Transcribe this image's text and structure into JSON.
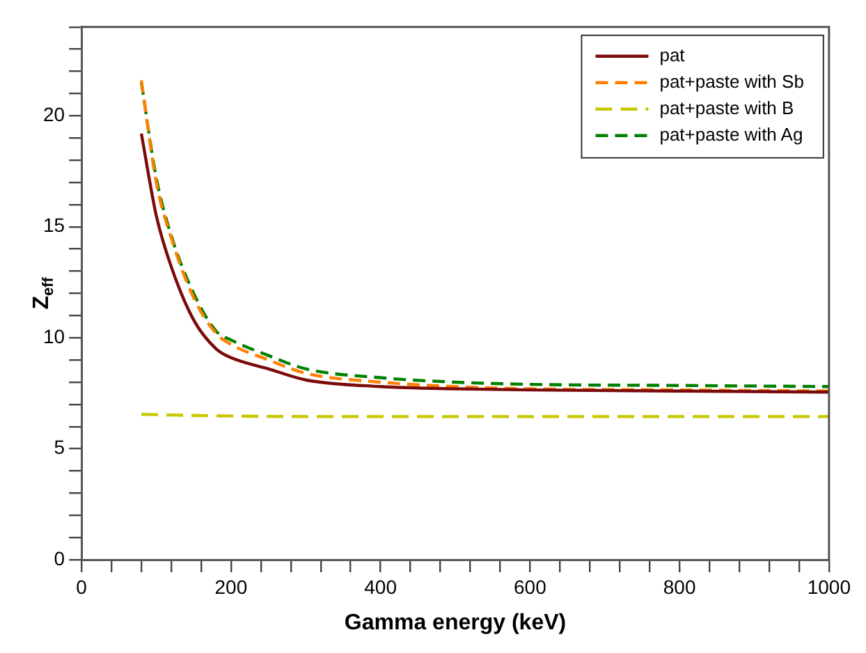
{
  "chart_data": {
    "type": "line",
    "xlabel": "Gamma energy (keV)",
    "ylabel": "Z$_{eff}$",
    "xlim": [
      0,
      1000
    ],
    "ylim": [
      0,
      24
    ],
    "xticks": [
      0,
      {
        "value": 40,
        "label": null
      },
      {
        "value": 80,
        "label": null
      },
      {
        "value": 120,
        "label": null
      },
      {
        "value": 160,
        "label": null
      },
      200,
      {
        "value": 240,
        "label": null
      },
      {
        "value": 280,
        "label": null
      },
      {
        "value": 320,
        "label": null
      },
      {
        "value": 360,
        "label": null
      },
      400,
      {
        "value": 440,
        "label": null
      },
      {
        "value": 480,
        "label": null
      },
      {
        "value": 520,
        "label": null
      },
      {
        "value": 560,
        "label": null
      },
      600,
      {
        "value": 640,
        "label": null
      },
      {
        "value": 680,
        "label": null
      },
      {
        "value": 720,
        "label": null
      },
      {
        "value": 760,
        "label": null
      },
      800,
      {
        "value": 840,
        "label": null
      },
      {
        "value": 880,
        "label": null
      },
      {
        "value": 920,
        "label": null
      },
      {
        "value": 960,
        "label": null
      },
      1000
    ],
    "yticks": [
      0,
      {
        "value": 1,
        "label": null
      },
      {
        "value": 2,
        "label": null
      },
      {
        "value": 3,
        "label": null
      },
      {
        "value": 4,
        "label": null
      },
      5,
      {
        "value": 6,
        "label": null
      },
      {
        "value": 7,
        "label": null
      },
      {
        "value": 8,
        "label": null
      },
      {
        "value": 9,
        "label": null
      },
      10,
      {
        "value": 11,
        "label": null
      },
      {
        "value": 12,
        "label": null
      },
      {
        "value": 13,
        "label": null
      },
      {
        "value": 14,
        "label": null
      },
      15,
      {
        "value": 16,
        "label": null
      },
      {
        "value": 17,
        "label": null
      },
      {
        "value": 18,
        "label": null
      },
      {
        "value": 19,
        "label": null
      },
      20,
      {
        "value": 21,
        "label": null
      },
      {
        "value": 22,
        "label": null
      },
      {
        "value": 23,
        "label": null
      },
      {
        "value": 24,
        "label": null
      }
    ],
    "grid": false,
    "legend": "top right",
    "marker": "none",
    "series": [
      {
        "name": "pat",
        "color": "#7b0a0a",
        "line_style": "solid",
        "x": [
          80,
          100,
          120,
          150,
          180,
          200,
          250,
          300,
          400,
          500,
          600,
          800,
          1000
        ],
        "values": [
          19.2,
          15.5,
          13.2,
          10.8,
          9.5,
          9.1,
          8.6,
          8.1,
          7.8,
          7.7,
          7.65,
          7.6,
          7.55
        ]
      },
      {
        "name": "pat+paste with Sb",
        "color": "#ff8000",
        "line_style": "dashed",
        "x": [
          80,
          100,
          120,
          150,
          180,
          200,
          250,
          300,
          400,
          500,
          600,
          800,
          1000
        ],
        "values": [
          21.6,
          17,
          14.5,
          11.8,
          10.2,
          9.7,
          9,
          8.4,
          8,
          7.8,
          7.7,
          7.65,
          7.6
        ]
      },
      {
        "name": "pat+paste with B",
        "color": "#c8c800",
        "line_style": "dashed",
        "x": [
          80,
          150,
          300,
          1000
        ],
        "values": [
          6.55,
          6.5,
          6.45,
          6.45
        ]
      },
      {
        "name": "pat+paste with Ag",
        "color": "#008000",
        "line_style": "dashed",
        "x": [
          80,
          100,
          120,
          150,
          180,
          200,
          250,
          300,
          400,
          500,
          600,
          800,
          1000
        ],
        "values": [
          21.5,
          17.2,
          14.6,
          12,
          10.3,
          9.9,
          9.2,
          8.6,
          8.2,
          8,
          7.9,
          7.85,
          7.8
        ]
      }
    ]
  }
}
